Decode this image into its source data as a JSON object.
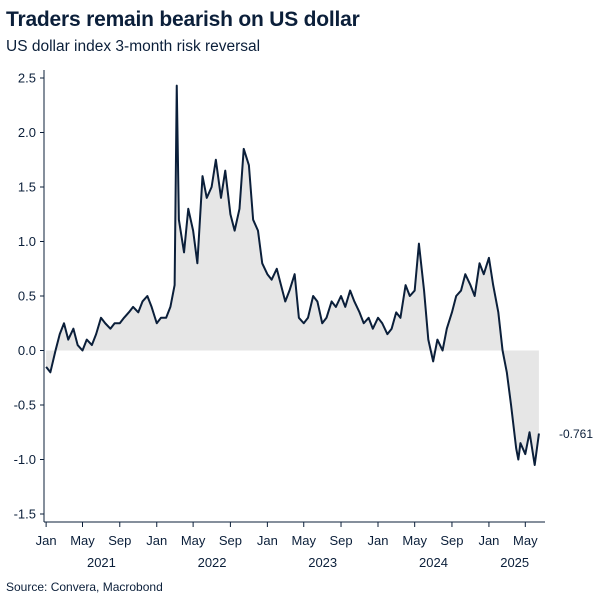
{
  "chart_data": {
    "type": "area",
    "title": "Traders remain bearish on US dollar",
    "subtitle": "US dollar index 3-month risk reversal",
    "source": "Source: Convera, Macrobond",
    "ylim": [
      -1.5,
      2.5
    ],
    "yticks": [
      "2.5",
      "2.0",
      "1.5",
      "1.0",
      "0.5",
      "0.0",
      "-0.5",
      "-1.0",
      "-1.5"
    ],
    "xticks": [
      "Jan",
      "May",
      "Sep",
      "Jan",
      "May",
      "Sep",
      "Jan",
      "May",
      "Sep",
      "Jan",
      "May",
      "Sep",
      "Jan",
      "May"
    ],
    "years": [
      "2021",
      "2022",
      "2023",
      "2024",
      "2025"
    ],
    "last_value_label": "-0.761",
    "line_color": "#0b1f3a",
    "fill_color": "#e6e6e6",
    "series": [
      {
        "x": [
          "2021-01-01",
          "2021-01-15",
          "2021-02-01",
          "2021-02-15",
          "2021-03-01",
          "2021-03-15",
          "2021-04-01",
          "2021-04-15",
          "2021-05-01",
          "2021-05-15",
          "2021-06-01",
          "2021-06-15",
          "2021-07-01",
          "2021-07-15",
          "2021-08-01",
          "2021-08-15",
          "2021-09-01",
          "2021-09-15",
          "2021-10-01",
          "2021-10-15",
          "2021-11-01",
          "2021-11-15",
          "2021-12-01",
          "2021-12-15",
          "2022-01-01",
          "2022-01-15",
          "2022-02-01",
          "2022-02-15",
          "2022-03-01",
          "2022-03-08",
          "2022-03-15",
          "2022-04-01",
          "2022-04-15",
          "2022-05-01",
          "2022-05-15",
          "2022-06-01",
          "2022-06-15",
          "2022-07-01",
          "2022-07-15",
          "2022-08-01",
          "2022-08-15",
          "2022-09-01",
          "2022-09-15",
          "2022-10-01",
          "2022-10-15",
          "2022-11-01",
          "2022-11-15",
          "2022-12-01",
          "2022-12-15",
          "2023-01-01",
          "2023-01-15",
          "2023-02-01",
          "2023-02-15",
          "2023-03-01",
          "2023-03-15",
          "2023-04-01",
          "2023-04-15",
          "2023-05-01",
          "2023-05-15",
          "2023-06-01",
          "2023-06-15",
          "2023-07-01",
          "2023-07-15",
          "2023-08-01",
          "2023-08-15",
          "2023-09-01",
          "2023-09-15",
          "2023-10-01",
          "2023-10-15",
          "2023-11-01",
          "2023-11-15",
          "2023-12-01",
          "2023-12-15",
          "2024-01-01",
          "2024-01-15",
          "2024-02-01",
          "2024-02-15",
          "2024-03-01",
          "2024-03-15",
          "2024-04-01",
          "2024-04-15",
          "2024-05-01",
          "2024-05-15",
          "2024-06-01",
          "2024-06-15",
          "2024-07-01",
          "2024-07-15",
          "2024-08-01",
          "2024-08-15",
          "2024-09-01",
          "2024-09-15",
          "2024-10-01",
          "2024-10-15",
          "2024-11-01",
          "2024-11-15",
          "2024-12-01",
          "2024-12-15",
          "2025-01-01",
          "2025-01-15",
          "2025-02-01",
          "2025-02-15",
          "2025-03-01",
          "2025-03-15",
          "2025-04-01",
          "2025-04-08",
          "2025-04-15",
          "2025-05-01",
          "2025-05-15",
          "2025-06-01",
          "2025-06-15"
        ],
        "y": [
          -0.15,
          -0.2,
          0.0,
          0.15,
          0.25,
          0.1,
          0.2,
          0.05,
          0.0,
          0.1,
          0.05,
          0.15,
          0.3,
          0.25,
          0.2,
          0.25,
          0.25,
          0.3,
          0.35,
          0.4,
          0.35,
          0.45,
          0.5,
          0.4,
          0.25,
          0.3,
          0.3,
          0.4,
          0.6,
          2.43,
          1.2,
          0.9,
          1.3,
          1.1,
          0.8,
          1.6,
          1.4,
          1.5,
          1.75,
          1.4,
          1.65,
          1.25,
          1.1,
          1.3,
          1.85,
          1.7,
          1.2,
          1.1,
          0.8,
          0.7,
          0.65,
          0.75,
          0.6,
          0.45,
          0.55,
          0.7,
          0.3,
          0.25,
          0.3,
          0.5,
          0.45,
          0.25,
          0.3,
          0.45,
          0.4,
          0.5,
          0.4,
          0.55,
          0.45,
          0.35,
          0.25,
          0.3,
          0.2,
          0.3,
          0.25,
          0.15,
          0.2,
          0.35,
          0.3,
          0.6,
          0.5,
          0.55,
          0.98,
          0.55,
          0.1,
          -0.1,
          0.1,
          0.0,
          0.2,
          0.35,
          0.5,
          0.55,
          0.7,
          0.6,
          0.5,
          0.8,
          0.7,
          0.85,
          0.6,
          0.35,
          0.0,
          -0.2,
          -0.5,
          -0.9,
          -1.0,
          -0.85,
          -0.95,
          -0.75,
          -1.05,
          -0.761
        ]
      }
    ]
  }
}
